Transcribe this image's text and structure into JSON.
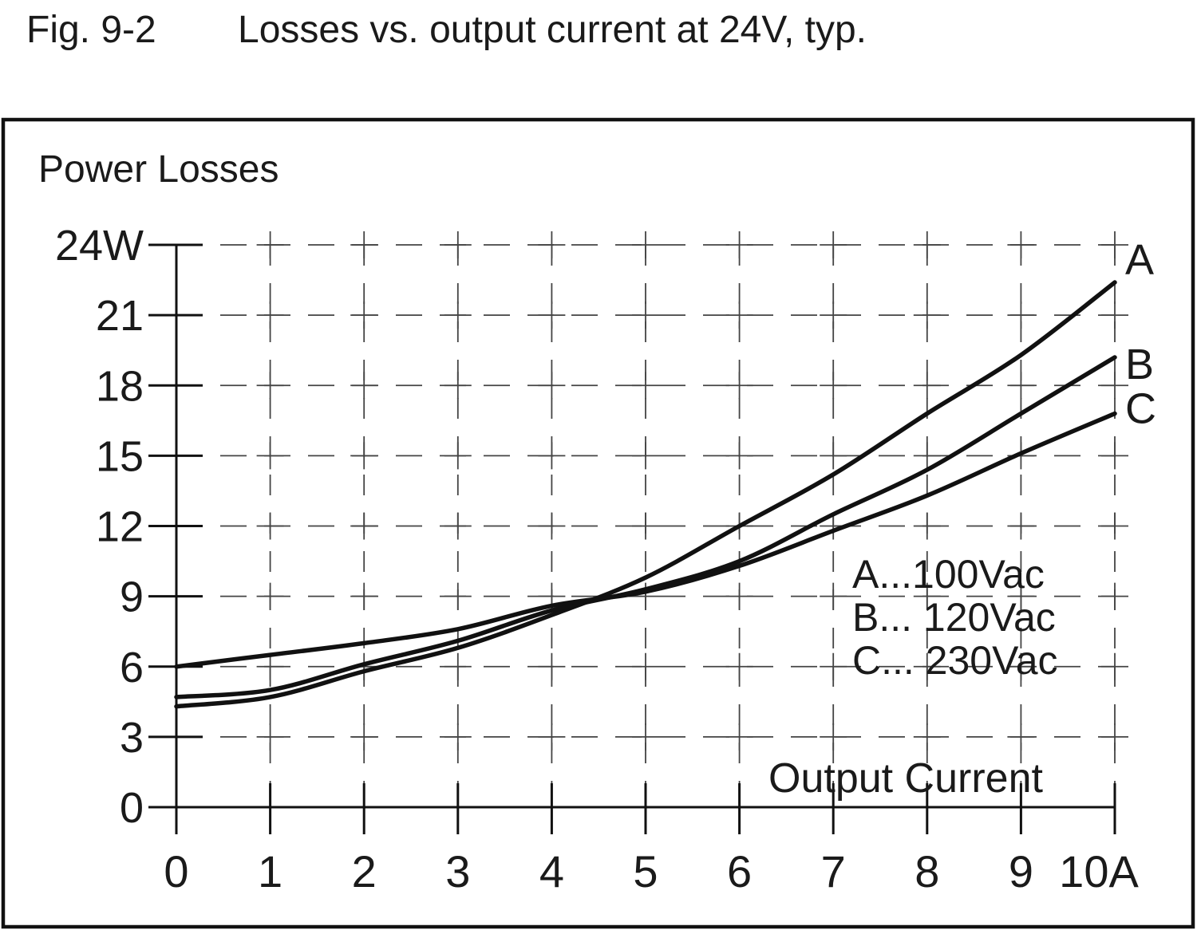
{
  "title": {
    "fig_label": "Fig. 9-2",
    "text": "Losses vs. output current at 24V, typ."
  },
  "chart_data": {
    "type": "line",
    "y_axis_title": "Power Losses",
    "x_axis_label": "Output Current",
    "y_unit": "W",
    "x_unit": "A",
    "xlim": [
      0,
      10
    ],
    "ylim": [
      0,
      24
    ],
    "x_tick_step": 1,
    "y_tick_step": 3,
    "grid": "dashed",
    "legend_position": "inside-right",
    "x_ticks": [
      "0",
      "1",
      "2",
      "3",
      "4",
      "5",
      "6",
      "7",
      "8",
      "9",
      "10A"
    ],
    "y_ticks": [
      "24W",
      "21",
      "18",
      "15",
      "12",
      "9",
      "6",
      "3",
      "0"
    ],
    "x_values": [
      0,
      1,
      2,
      3,
      4,
      5,
      6,
      7,
      8,
      9,
      10
    ],
    "series": [
      {
        "label": "A",
        "name": "100Vac",
        "values": [
          4.3,
          4.7,
          5.8,
          6.8,
          8.2,
          9.8,
          12.0,
          14.2,
          16.8,
          19.3,
          22.4
        ]
      },
      {
        "label": "B",
        "name": "120Vac",
        "values": [
          4.7,
          5.0,
          6.1,
          7.1,
          8.4,
          9.3,
          10.5,
          12.5,
          14.4,
          16.8,
          19.2
        ]
      },
      {
        "label": "C",
        "name": "230Vac",
        "values": [
          6.0,
          6.5,
          7.0,
          7.6,
          8.6,
          9.2,
          10.3,
          11.8,
          13.3,
          15.1,
          16.8
        ]
      }
    ],
    "legend": [
      "A...100Vac",
      "B... 120Vac",
      "C... 230Vac"
    ],
    "line_color": "#111111",
    "grid_color": "#444444",
    "axis_color": "#111111"
  }
}
